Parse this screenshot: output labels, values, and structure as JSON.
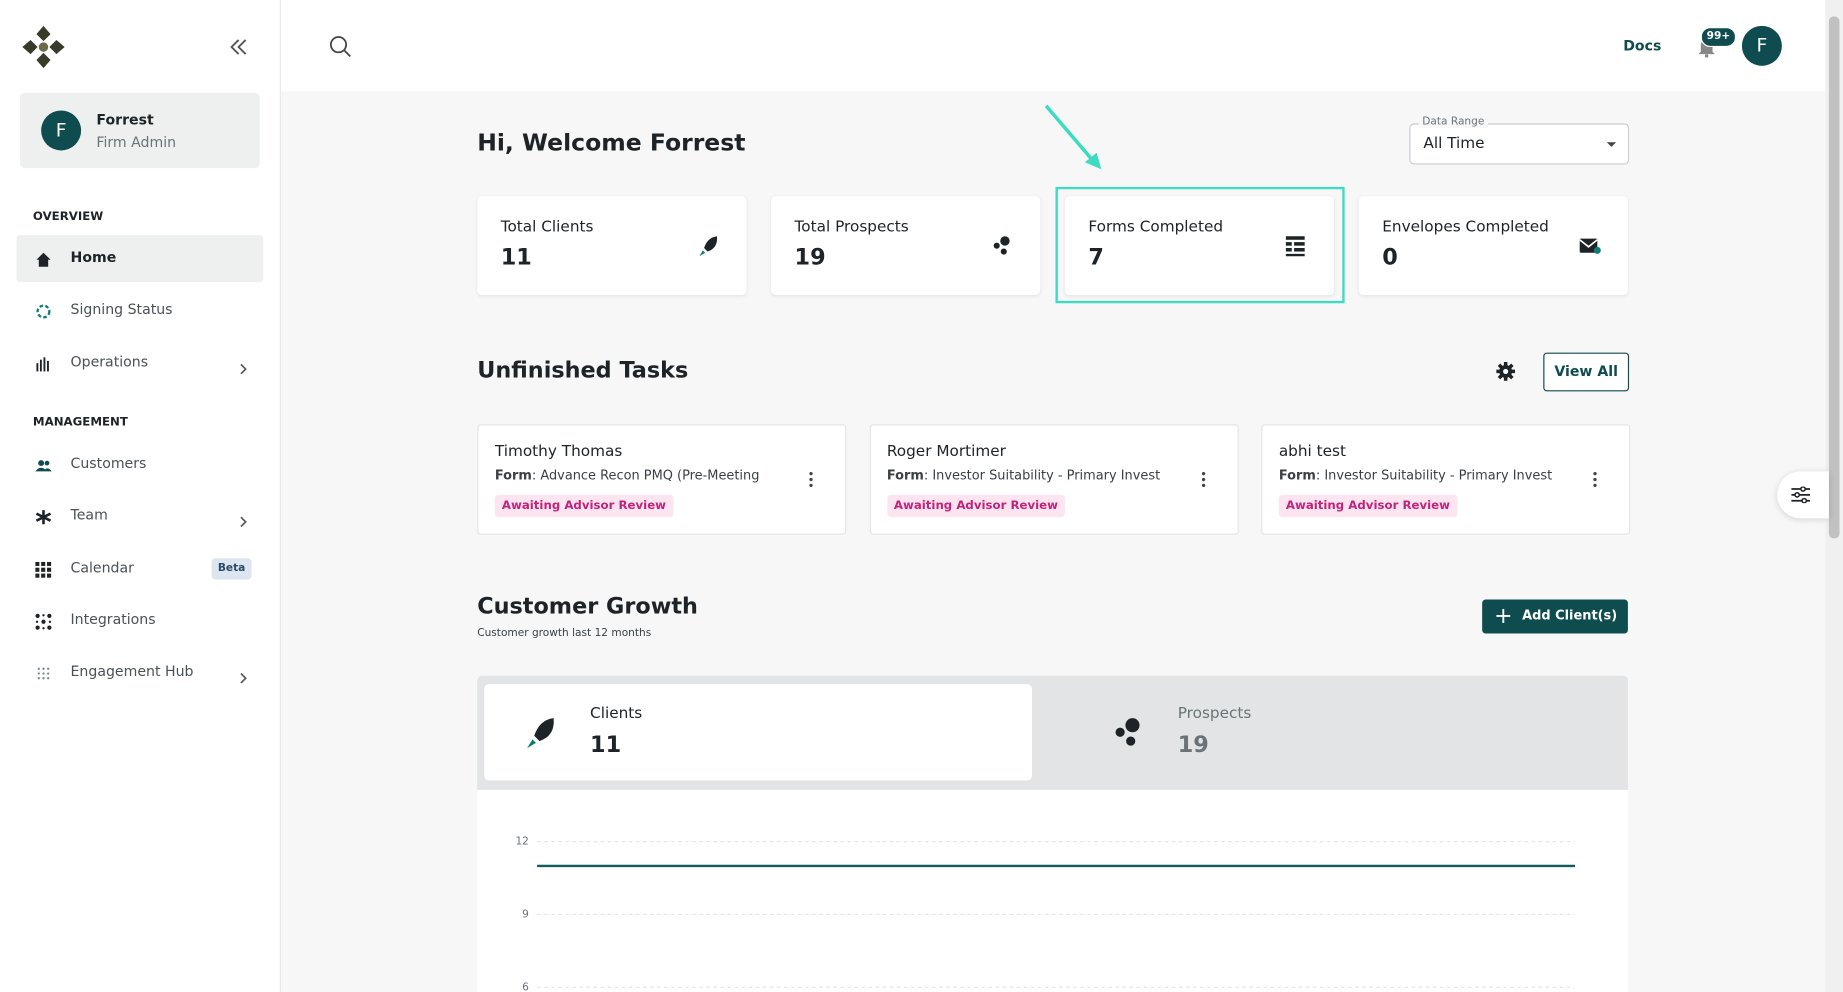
{
  "sidebar": {
    "user": {
      "initial": "F",
      "name": "Forrest",
      "role": "Firm Admin"
    },
    "sections": [
      {
        "title": "OVERVIEW",
        "items": [
          {
            "label": "Home",
            "active": true
          },
          {
            "label": "Signing Status"
          },
          {
            "label": "Operations",
            "expandable": true
          }
        ]
      },
      {
        "title": "MANAGEMENT",
        "items": [
          {
            "label": "Customers"
          },
          {
            "label": "Team",
            "expandable": true
          },
          {
            "label": "Calendar",
            "badge": "Beta"
          },
          {
            "label": "Integrations"
          },
          {
            "label": "Engagement Hub",
            "expandable": true
          }
        ]
      }
    ]
  },
  "topbar": {
    "docs": "Docs",
    "notifications": "99+",
    "avatar": "F"
  },
  "welcome": "Hi, Welcome Forrest",
  "date_range": {
    "label": "Data Range",
    "value": "All Time"
  },
  "stats": [
    {
      "label": "Total Clients",
      "value": 11
    },
    {
      "label": "Total Prospects",
      "value": 19
    },
    {
      "label": "Forms Completed",
      "value": 7,
      "highlighted": true
    },
    {
      "label": "Envelopes Completed",
      "value": 0
    }
  ],
  "tasks": {
    "title": "Unfinished Tasks",
    "view_all": "View All",
    "items": [
      {
        "name": "Timothy Thomas",
        "form_label": "Form",
        "form": ": Advance Recon PMQ (Pre-Meeting",
        "status": "Awaiting Advisor Review"
      },
      {
        "name": "Roger Mortimer",
        "form_label": "Form",
        "form": ": Investor Suitability - Primary Invest",
        "status": "Awaiting Advisor Review"
      },
      {
        "name": "abhi test",
        "form_label": "Form",
        "form": ": Investor Suitability - Primary Invest",
        "status": "Awaiting Advisor Review"
      }
    ]
  },
  "growth": {
    "title": "Customer Growth",
    "subtitle": "Customer growth last 12 months",
    "add_button": "Add Client(s)",
    "tabs": [
      {
        "label": "Clients",
        "value": 11,
        "active": true
      },
      {
        "label": "Prospects",
        "value": 19
      }
    ],
    "chart_data": {
      "type": "line",
      "color": "#0f5c5a",
      "values": [
        11,
        11,
        11,
        11,
        11,
        11,
        11,
        11,
        11,
        11,
        11,
        11
      ],
      "ylim": [
        6,
        12
      ],
      "yticks": [
        12,
        9,
        6
      ],
      "grid": true
    }
  }
}
